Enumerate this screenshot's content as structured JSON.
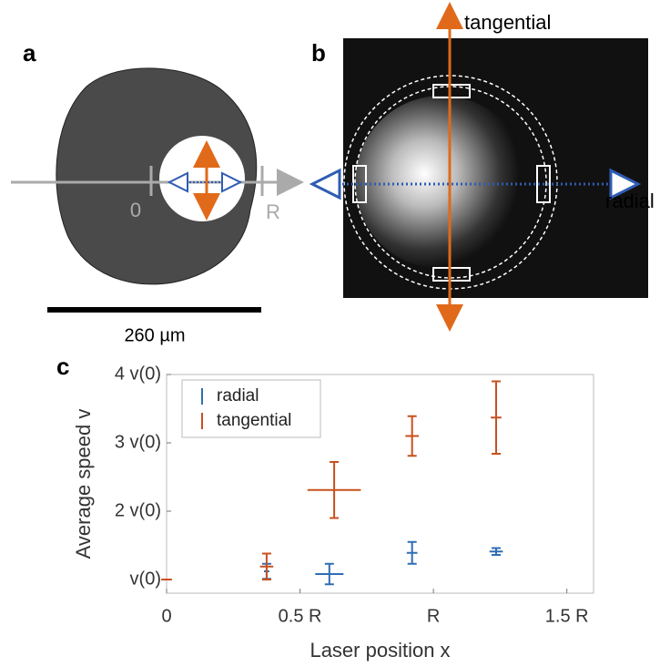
{
  "panels": {
    "a": {
      "label": "a",
      "zero": "0",
      "edge": "R",
      "scale_bar": "260 µm"
    },
    "b": {
      "label": "b",
      "tangential": "tangential",
      "radial": "radial"
    }
  },
  "chart_data": {
    "type": "errorbar",
    "panel_label": "c",
    "xlabel": "Laser position x",
    "ylabel": "Average speed v",
    "xlim": [
      0,
      1.6
    ],
    "ylim": [
      0.8,
      4
    ],
    "xticks": [
      0,
      {
        "value": 0.5,
        "label": "0.5 R"
      },
      {
        "value": 1,
        "label": "R"
      },
      {
        "value": 1.5,
        "label": "1.5 R"
      }
    ],
    "yticks": [
      {
        "value": 1,
        "label": "v(0)"
      },
      {
        "value": 2,
        "label": "2 v(0)"
      },
      {
        "value": 3,
        "label": "3 v(0)"
      },
      {
        "value": 4,
        "label": "4 v(0)"
      }
    ],
    "legend": "upper left",
    "series": [
      {
        "name": "radial",
        "color": "#2f6db3",
        "x": [
          0.375,
          0.61,
          0.92,
          1.235
        ],
        "values": [
          1.12,
          1.08,
          1.39,
          1.41
        ],
        "xerr": [
          0.01,
          0.053,
          0.02,
          0.025
        ],
        "yerr": [
          0.11,
          0.15,
          0.16,
          0.05
        ]
      },
      {
        "name": "tangential",
        "color": "#c8501e",
        "x": [
          0,
          0.375,
          0.628,
          0.92,
          1.235
        ],
        "values": [
          1,
          1.19,
          2.31,
          3.1,
          3.37
        ],
        "xerr": [
          0.02,
          0.025,
          0.1,
          0.025,
          0.02
        ],
        "yerr": [
          0,
          0.19,
          0.41,
          0.29,
          0.53
        ]
      }
    ]
  }
}
